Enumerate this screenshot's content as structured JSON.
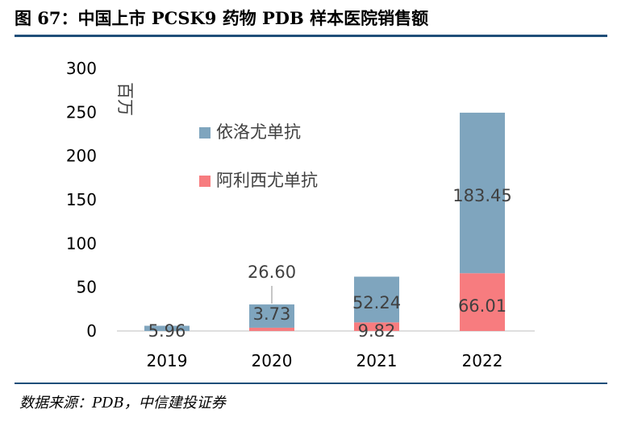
{
  "figure": {
    "title": "图 67：中国上市 PCSK9 药物 PDB 样本医院销售额",
    "source": "数据来源：PDB，中信建投证券"
  },
  "colors": {
    "rule": "#1f4e79",
    "evolocumab": "#7fa5be",
    "alirocumab": "#f77c7f",
    "axis": "#bfbfbf",
    "text": "#404040"
  },
  "chart_data": {
    "type": "bar",
    "stacked": true,
    "categories": [
      "2019",
      "2020",
      "2021",
      "2022"
    ],
    "series": [
      {
        "name": "阿利西尤单抗",
        "values": [
          0,
          3.73,
          9.82,
          66.01
        ],
        "labels": [
          "",
          "3.73",
          "9.82",
          "66.01"
        ]
      },
      {
        "name": "依洛尤单抗",
        "values": [
          5.96,
          26.6,
          52.24,
          183.45
        ],
        "labels": [
          "5.96",
          "26.60",
          "52.24",
          "183.45"
        ]
      }
    ],
    "ylabel": "百万",
    "ylim": [
      0,
      300
    ],
    "yticks": [
      "0",
      "50",
      "100",
      "150",
      "200",
      "250",
      "300"
    ],
    "grid": false,
    "legend_position": "top-left",
    "legend": [
      "依洛尤单抗",
      "阿利西尤单抗"
    ]
  }
}
